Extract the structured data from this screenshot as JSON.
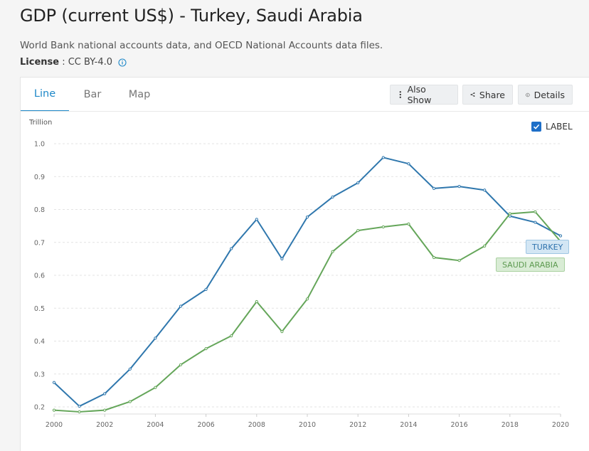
{
  "header": {
    "title": "GDP (current US$) - Turkey, Saudi Arabia",
    "source": "World Bank national accounts data, and OECD National Accounts data files.",
    "license_label": "License",
    "license_sep": " : ",
    "license_value": "CC BY-4.0"
  },
  "tabs": [
    {
      "label": "Line",
      "active": true
    },
    {
      "label": "Bar",
      "active": false
    },
    {
      "label": "Map",
      "active": false
    }
  ],
  "toolbar": {
    "also_show": "Also Show",
    "share": "Share",
    "details": "Details"
  },
  "label_toggle": {
    "text": "LABEL",
    "checked": true
  },
  "colors": {
    "accent": "#1e88c8",
    "turkey": "#2f77ad",
    "saudi": "#65a65a"
  },
  "chart_data": {
    "type": "line",
    "ylabel": "Trillion",
    "ylim": [
      0.18,
      1.0
    ],
    "yticks": [
      "0.2",
      "0.3",
      "0.4",
      "0.5",
      "0.6",
      "0.7",
      "0.8",
      "0.9",
      "1.0"
    ],
    "xticks": [
      "2000",
      "2002",
      "2004",
      "2006",
      "2008",
      "2010",
      "2012",
      "2014",
      "2016",
      "2018",
      "2020"
    ],
    "x": [
      2000,
      2001,
      2002,
      2003,
      2004,
      2005,
      2006,
      2007,
      2008,
      2009,
      2010,
      2011,
      2012,
      2013,
      2014,
      2015,
      2016,
      2017,
      2018,
      2019,
      2020
    ],
    "grid": true,
    "series": [
      {
        "name": "TURKEY",
        "values": [
          0.274,
          0.202,
          0.24,
          0.315,
          0.409,
          0.506,
          0.557,
          0.681,
          0.77,
          0.65,
          0.777,
          0.838,
          0.881,
          0.958,
          0.939,
          0.864,
          0.87,
          0.859,
          0.78,
          0.761,
          0.72
        ]
      },
      {
        "name": "SAUDI ARABIA",
        "values": [
          0.19,
          0.185,
          0.19,
          0.216,
          0.259,
          0.328,
          0.377,
          0.416,
          0.52,
          0.429,
          0.528,
          0.672,
          0.736,
          0.747,
          0.756,
          0.654,
          0.645,
          0.689,
          0.787,
          0.793,
          0.703
        ]
      }
    ]
  }
}
